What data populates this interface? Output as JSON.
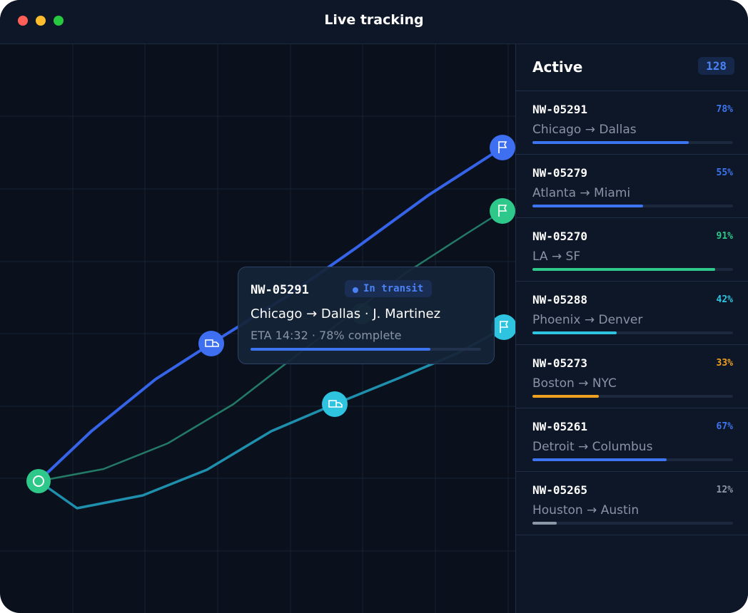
{
  "window": {
    "title": "Live tracking"
  },
  "sidebar": {
    "title": "Active",
    "count": 128,
    "shipments": [
      {
        "id": "NW-05291",
        "route": "Chicago → Dallas",
        "progress": 78,
        "progress_label": "78%",
        "color": "#3d74f0"
      },
      {
        "id": "NW-05279",
        "route": "Atlanta → Miami",
        "progress": 55,
        "progress_label": "55%",
        "color": "#3d74f0"
      },
      {
        "id": "NW-05270",
        "route": "LA → SF",
        "progress": 91,
        "progress_label": "91%",
        "color": "#2ec88a"
      },
      {
        "id": "NW-05288",
        "route": "Phoenix → Denver",
        "progress": 42,
        "progress_label": "42%",
        "color": "#2ec4e0"
      },
      {
        "id": "NW-05273",
        "route": "Boston → NYC",
        "progress": 33,
        "progress_label": "33%",
        "color": "#f0a020"
      },
      {
        "id": "NW-05261",
        "route": "Detroit → Columbus",
        "progress": 67,
        "progress_label": "67%",
        "color": "#3d74f0"
      },
      {
        "id": "NW-05265",
        "route": "Houston → Austin",
        "progress": 12,
        "progress_label": "12%",
        "color": "#8c97a8"
      }
    ]
  },
  "tooltip": {
    "id": "NW-05291",
    "status": "In transit",
    "details": "Chicago → Dallas · J. Martinez",
    "eta": "ETA 14:32 · 78% complete",
    "progress": 78
  }
}
